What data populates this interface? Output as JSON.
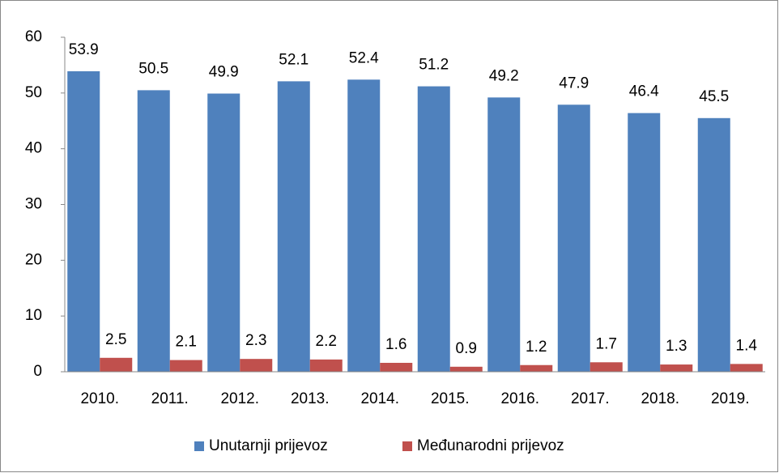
{
  "chart_data": {
    "type": "bar",
    "categories": [
      "2010.",
      "2011.",
      "2012.",
      "2013.",
      "2014.",
      "2015.",
      "2016.",
      "2017.",
      "2018.",
      "2019."
    ],
    "series": [
      {
        "name": "Unutarnji prijevoz",
        "color": "#4f81bd",
        "values": [
          53.9,
          50.5,
          49.9,
          52.1,
          52.4,
          51.2,
          49.2,
          47.9,
          46.4,
          45.5
        ]
      },
      {
        "name": "Međunarodni prijevoz",
        "color": "#c0504d",
        "values": [
          2.5,
          2.1,
          2.3,
          2.2,
          1.6,
          0.9,
          1.2,
          1.7,
          1.3,
          1.4
        ]
      }
    ],
    "ylim": [
      0,
      60
    ],
    "yticks": [
      0,
      10,
      20,
      30,
      40,
      50,
      60
    ],
    "grid": false,
    "legend": "bottom"
  }
}
